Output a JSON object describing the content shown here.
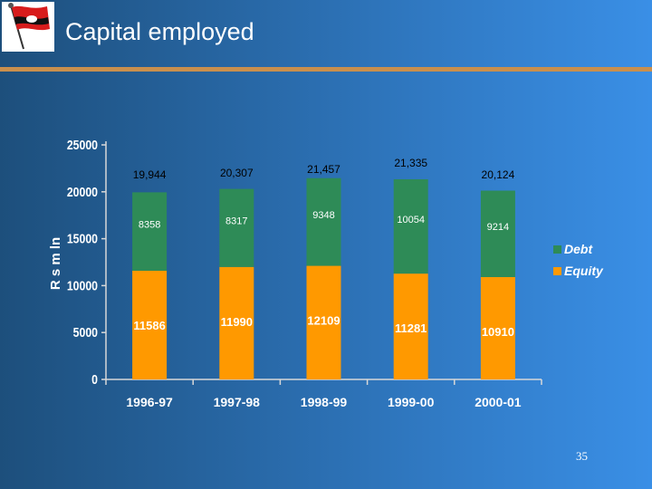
{
  "slide": {
    "title": "Capital employed",
    "page_number": "35"
  },
  "chart_data": {
    "type": "bar",
    "stacked": true,
    "title": "",
    "xlabel": "",
    "ylabel": "R s m ln",
    "ylim": [
      0,
      25000
    ],
    "yticks": [
      "0",
      "5000",
      "10000",
      "15000",
      "20000",
      "25000"
    ],
    "categories": [
      "1996-97",
      "1997-98",
      "1998-99",
      "1999-00",
      "2000-01"
    ],
    "totals": [
      "19,944",
      "20,307",
      "21,457",
      "21,335",
      "20,124"
    ],
    "series": [
      {
        "name": "Equity",
        "values": [
          11586,
          11990,
          12109,
          11281,
          10910
        ],
        "color": "#ff9900"
      },
      {
        "name": "Debt",
        "values": [
          8358,
          8317,
          9348,
          10054,
          9214
        ],
        "color": "#2e8b57"
      }
    ],
    "legend_position": "right",
    "colors": {
      "axis": "#d8d8d8",
      "label_text": "#ffffff",
      "total_text": "#000000"
    }
  }
}
